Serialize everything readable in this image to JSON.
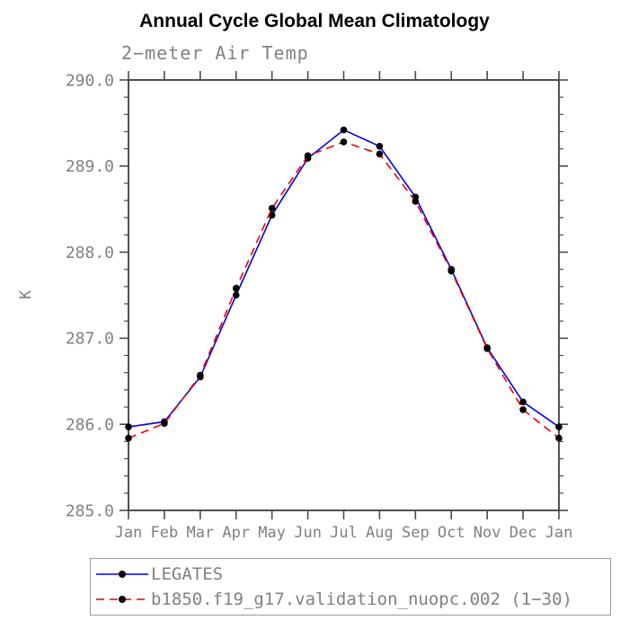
{
  "title": "Annual Cycle Global Mean Climatology",
  "subtitle": "2−meter Air Temp",
  "ylabel": "K",
  "colors": {
    "background": "#ffffff",
    "frame": "#3c3c3c",
    "tick": "#4a4a4a",
    "label_gray": "#808080",
    "marker": "#000000",
    "series1": "#0000ee",
    "series2": "#ee0000"
  },
  "chart_data": {
    "type": "line",
    "title": "Annual Cycle Global Mean Climatology",
    "subtitle": "2−meter Air Temp",
    "xlabel": "",
    "ylabel": "K",
    "x": [
      "Jan",
      "Feb",
      "Mar",
      "Apr",
      "May",
      "Jun",
      "Jul",
      "Aug",
      "Sep",
      "Oct",
      "Nov",
      "Dec",
      "Jan"
    ],
    "series": [
      {
        "name": "LEGATES",
        "color": "#0000ee",
        "dash": "",
        "marker": "filled-circle",
        "values": [
          285.97,
          286.03,
          286.55,
          287.5,
          288.43,
          289.09,
          289.42,
          289.23,
          288.64,
          287.8,
          286.89,
          286.26,
          285.97
        ]
      },
      {
        "name": "b1850.f19_g17.validation_nuopc.002 (1−30)",
        "color": "#ee0000",
        "dash": "9 6",
        "marker": "filled-circle",
        "values": [
          285.84,
          286.01,
          286.57,
          287.58,
          288.51,
          289.12,
          289.28,
          289.14,
          288.59,
          287.78,
          286.88,
          286.17,
          285.84
        ]
      }
    ],
    "ylim": [
      285.0,
      290.0
    ],
    "yticks": [
      "285.0",
      "286.0",
      "287.0",
      "288.0",
      "289.0",
      "290.0"
    ],
    "ytick_minor_step": 0.2,
    "grid": false,
    "legend_position": "bottom"
  }
}
